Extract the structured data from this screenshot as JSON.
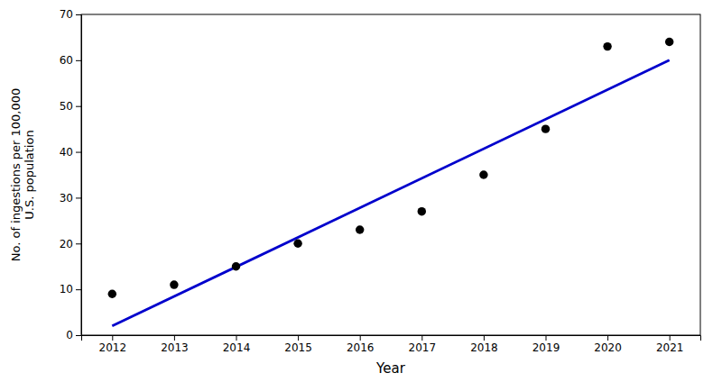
{
  "chart_data": {
    "type": "scatter",
    "xlabel": "Year",
    "ylabel": "No. of ingestions per 100,000\nU.S. population",
    "series": [
      {
        "type": "scatter",
        "color": "#000000",
        "marker": "circle",
        "x": [
          2012,
          2013,
          2014,
          2015,
          2016,
          2017,
          2018,
          2019,
          2020,
          2021
        ],
        "values": [
          9,
          11,
          15,
          20,
          23,
          27,
          35,
          45,
          63,
          64
        ]
      },
      {
        "type": "line",
        "color": "#0000CC",
        "line_style": "solid",
        "x": [
          2012.0,
          2021.0
        ],
        "values": [
          2.0,
          60.0
        ]
      }
    ],
    "xlim": [
      2011.5,
      2021.5
    ],
    "ylim": [
      0,
      70
    ],
    "xticks": [
      2012,
      2013,
      2014,
      2015,
      2016,
      2017,
      2018,
      2019,
      2020,
      2021
    ],
    "yticks": [
      0,
      10,
      20,
      30,
      40,
      50,
      60,
      70
    ],
    "grid": false
  }
}
